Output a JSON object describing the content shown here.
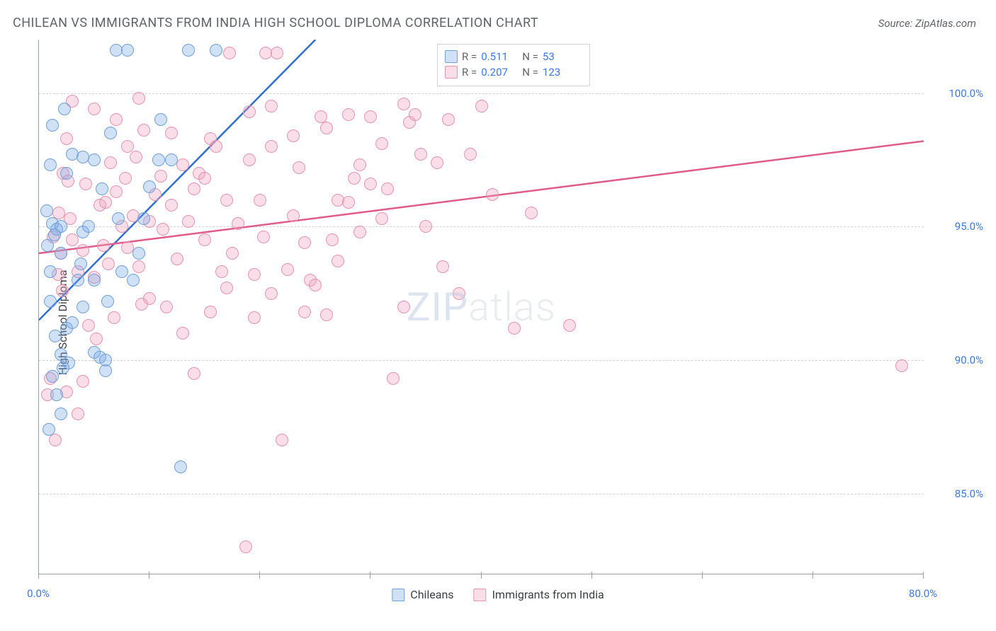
{
  "header": {
    "title": "CHILEAN VS IMMIGRANTS FROM INDIA HIGH SCHOOL DIPLOMA CORRELATION CHART",
    "source": "Source: ZipAtlas.com"
  },
  "chart": {
    "type": "scatter",
    "ylabel": "High School Diploma",
    "watermark": {
      "bold": "ZIP",
      "rest": "atlas"
    },
    "background_color": "#ffffff",
    "grid_color": "#d0d3d7",
    "axis_color": "#9aa0a6",
    "text_color": "#5f6368",
    "value_color": "#3b78e7",
    "xlim": [
      0,
      80
    ],
    "ylim": [
      82,
      102
    ],
    "ytick_step": 5,
    "yticks": [
      85,
      90,
      95,
      100
    ],
    "ytick_labels": [
      "85.0%",
      "90.0%",
      "95.0%",
      "100.0%"
    ],
    "xticks": [
      0,
      10,
      20,
      30,
      40,
      50,
      60,
      70,
      80
    ],
    "xtick_labels_shown": {
      "0": "0.0%",
      "80": "80.0%"
    },
    "marker_radius": 9,
    "marker_border_width": 1.5,
    "line_width": 2.5,
    "series": {
      "chileans": {
        "label": "Chileans",
        "fill": "rgba(120,168,230,0.35)",
        "stroke": "#6fa0dc",
        "line_color": "#2f6fd0",
        "R": "0.511",
        "N": "53",
        "regression": {
          "x1": 0,
          "y1": 91.5,
          "x2": 25,
          "y2": 102
        },
        "points": [
          [
            1,
            92.2
          ],
          [
            1,
            93.3
          ],
          [
            1.4,
            94.7
          ],
          [
            1.6,
            94.9
          ],
          [
            0.8,
            94.3
          ],
          [
            1.2,
            95.1
          ],
          [
            2,
            95.0
          ],
          [
            1.5,
            90.9
          ],
          [
            2,
            90.2
          ],
          [
            2.2,
            89.7
          ],
          [
            2.7,
            89.9
          ],
          [
            1,
            97.3
          ],
          [
            2.5,
            97.0
          ],
          [
            3,
            97.7
          ],
          [
            4,
            97.6
          ],
          [
            3.5,
            93.0
          ],
          [
            4,
            94.8
          ],
          [
            4.5,
            95.0
          ],
          [
            5,
            97.5
          ],
          [
            5.7,
            96.4
          ],
          [
            6.5,
            98.5
          ],
          [
            7,
            101.6
          ],
          [
            7.2,
            95.3
          ],
          [
            8,
            101.6
          ],
          [
            5,
            90.3
          ],
          [
            5.5,
            90.1
          ],
          [
            6,
            90.0
          ],
          [
            6,
            89.6
          ],
          [
            12,
            97.5
          ],
          [
            13.5,
            101.6
          ],
          [
            16,
            101.6
          ],
          [
            9.5,
            95.3
          ],
          [
            10,
            96.5
          ],
          [
            10.8,
            97.5
          ],
          [
            2.5,
            91.2
          ],
          [
            3,
            91.4
          ],
          [
            4,
            92.0
          ],
          [
            3.8,
            93.6
          ],
          [
            1.2,
            89.4
          ],
          [
            1.6,
            88.7
          ],
          [
            2,
            88.0
          ],
          [
            0.9,
            87.4
          ],
          [
            12.8,
            86.0
          ],
          [
            8.5,
            93.0
          ],
          [
            9,
            94.0
          ],
          [
            11,
            99.0
          ],
          [
            7.5,
            93.3
          ],
          [
            6.2,
            92.2
          ],
          [
            5,
            93.0
          ],
          [
            2.3,
            99.4
          ],
          [
            2,
            94.0
          ],
          [
            0.7,
            95.6
          ],
          [
            1.2,
            98.8
          ]
        ]
      },
      "india": {
        "label": "Immigrants from India",
        "fill": "rgba(240,160,185,0.35)",
        "stroke": "#e893ae",
        "line_color": "#e05a8a",
        "R": "0.207",
        "N": "123",
        "regression": {
          "x1": 0,
          "y1": 94.0,
          "x2": 80,
          "y2": 98.2
        },
        "points": [
          [
            1.5,
            87.0
          ],
          [
            0.8,
            88.7
          ],
          [
            1,
            89.3
          ],
          [
            2.5,
            88.8
          ],
          [
            3,
            94.5
          ],
          [
            3.5,
            93.3
          ],
          [
            4,
            94.1
          ],
          [
            5,
            93.1
          ],
          [
            5.5,
            95.8
          ],
          [
            6,
            95.9
          ],
          [
            7,
            96.3
          ],
          [
            7.5,
            95.0
          ],
          [
            6.3,
            93.6
          ],
          [
            8,
            94.2
          ],
          [
            8.5,
            95.4
          ],
          [
            9,
            93.5
          ],
          [
            10,
            92.3
          ],
          [
            10.5,
            96.2
          ],
          [
            11,
            96.9
          ],
          [
            11.5,
            92.0
          ],
          [
            12,
            95.8
          ],
          [
            12.5,
            93.8
          ],
          [
            13,
            97.3
          ],
          [
            5.2,
            90.8
          ],
          [
            14,
            96.4
          ],
          [
            14.5,
            97.0
          ],
          [
            15,
            94.5
          ],
          [
            15.5,
            98.3
          ],
          [
            16,
            98.0
          ],
          [
            17,
            96.0
          ],
          [
            17.5,
            94.0
          ],
          [
            17.2,
            101.5
          ],
          [
            18,
            95.1
          ],
          [
            19,
            97.5
          ],
          [
            19.5,
            93.2
          ],
          [
            19.5,
            91.6
          ],
          [
            20,
            96.0
          ],
          [
            20.5,
            101.5
          ],
          [
            21,
            98.0
          ],
          [
            21,
            92.5
          ],
          [
            21.5,
            101.5
          ],
          [
            22,
            87.0
          ],
          [
            23,
            95.4
          ],
          [
            23.5,
            97.2
          ],
          [
            24,
            94.4
          ],
          [
            24.5,
            93.0
          ],
          [
            25,
            92.8
          ],
          [
            25.5,
            99.1
          ],
          [
            26,
            98.7
          ],
          [
            26.5,
            94.5
          ],
          [
            27,
            96.0
          ],
          [
            28,
            99.2
          ],
          [
            28.5,
            96.8
          ],
          [
            29,
            97.3
          ],
          [
            30,
            99.1
          ],
          [
            31,
            95.3
          ],
          [
            31.5,
            96.4
          ],
          [
            32,
            89.3
          ],
          [
            33,
            92.0
          ],
          [
            33.5,
            98.9
          ],
          [
            34,
            99.2
          ],
          [
            34.5,
            97.7
          ],
          [
            35,
            95.0
          ],
          [
            36,
            97.4
          ],
          [
            36.5,
            93.5
          ],
          [
            38,
            92.5
          ],
          [
            39,
            97.7
          ],
          [
            40,
            99.5
          ],
          [
            41,
            96.2
          ],
          [
            43,
            91.2
          ],
          [
            44.5,
            95.5
          ],
          [
            48,
            91.3
          ],
          [
            78,
            89.8
          ],
          [
            1.8,
            95.5
          ],
          [
            2,
            94.0
          ],
          [
            2.2,
            97.0
          ],
          [
            2.5,
            98.3
          ],
          [
            3,
            99.7
          ],
          [
            5,
            99.4
          ],
          [
            7,
            99.0
          ],
          [
            8,
            98.0
          ],
          [
            9,
            99.8
          ],
          [
            13,
            91.0
          ],
          [
            14,
            89.5
          ],
          [
            15.5,
            91.8
          ],
          [
            4.5,
            91.3
          ],
          [
            3.5,
            88.0
          ],
          [
            4,
            89.2
          ],
          [
            1.3,
            94.6
          ],
          [
            1.7,
            93.2
          ],
          [
            2.1,
            92.6
          ],
          [
            2.6,
            96.7
          ],
          [
            18.7,
            83.0
          ],
          [
            24,
            91.8
          ],
          [
            26,
            91.7
          ],
          [
            29,
            94.8
          ],
          [
            30,
            96.6
          ],
          [
            27,
            93.7
          ],
          [
            6.5,
            97.4
          ],
          [
            7.8,
            96.8
          ],
          [
            8.8,
            97.6
          ],
          [
            9.5,
            98.6
          ],
          [
            37,
            99.0
          ],
          [
            33,
            99.6
          ],
          [
            19,
            99.3
          ],
          [
            21,
            99.5
          ],
          [
            23,
            98.4
          ],
          [
            16.5,
            93.3
          ],
          [
            31,
            98.1
          ],
          [
            28,
            95.9
          ],
          [
            22.5,
            93.4
          ],
          [
            12,
            98.5
          ],
          [
            11.2,
            94.9
          ],
          [
            10,
            95.2
          ],
          [
            4.2,
            96.6
          ],
          [
            5.8,
            94.3
          ],
          [
            2.8,
            95.3
          ],
          [
            6.8,
            91.6
          ],
          [
            9.3,
            92.1
          ],
          [
            20.3,
            94.6
          ],
          [
            13.5,
            95.2
          ],
          [
            15,
            96.8
          ],
          [
            17,
            92.7
          ]
        ]
      }
    }
  }
}
